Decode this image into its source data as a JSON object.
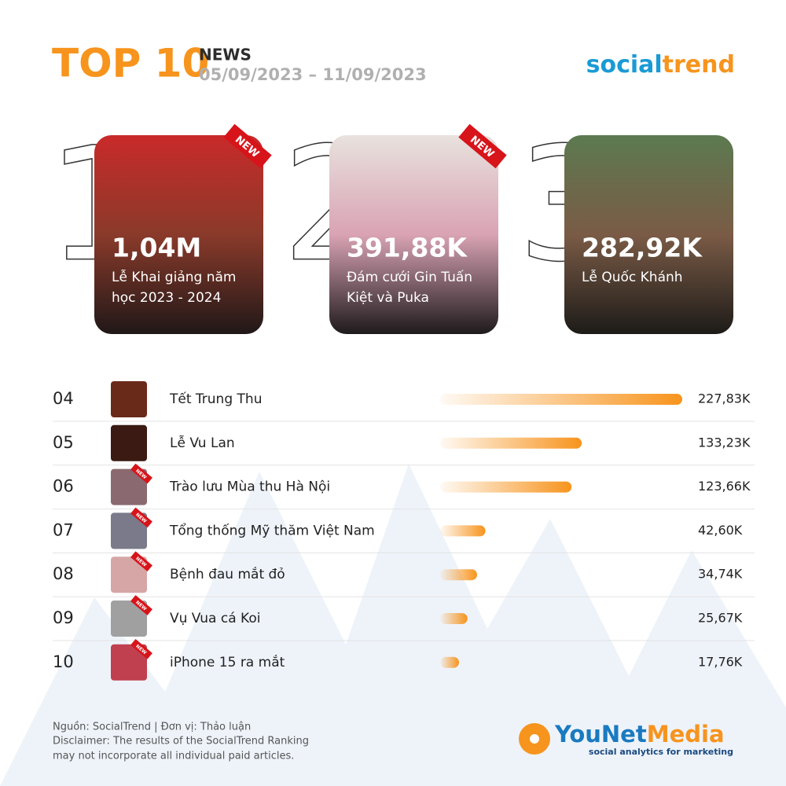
{
  "header": {
    "title": "TOP 10",
    "category": "NEWS",
    "dates": "05/09/2023 – 11/09/2023",
    "brand": {
      "a": "social",
      "b": "trend"
    }
  },
  "new_label": "NEW",
  "top3": [
    {
      "rank": "1",
      "value": 1040000,
      "value_label": "1,04M",
      "name_lines": [
        "Lễ Khai giảng năm",
        "học 2023 - 2024"
      ],
      "new": true
    },
    {
      "rank": "2",
      "value": 391880,
      "value_label": "391,88K",
      "name_lines": [
        "Đám cưới Gin Tuấn",
        "Kiệt và Puka"
      ],
      "new": true
    },
    {
      "rank": "3",
      "value": 282920,
      "value_label": "282,92K",
      "name_lines": [
        "Lễ Quốc Khánh"
      ],
      "new": false
    }
  ],
  "chart_data": {
    "type": "bar",
    "orientation": "horizontal",
    "ranks": [
      "04",
      "05",
      "06",
      "07",
      "08",
      "09",
      "10"
    ],
    "categories": [
      "Tết Trung Thu",
      "Lễ Vu Lan",
      "Trào lưu Mùa thu Hà Nội",
      "Tổng thống Mỹ thăm Việt Nam",
      "Bệnh đau mắt đỏ",
      "Vụ Vua cá Koi",
      "iPhone 15 ra mắt"
    ],
    "values": [
      227830,
      133230,
      123660,
      42600,
      34740,
      25670,
      17760
    ],
    "value_labels": [
      "227,83K",
      "133,23K",
      "123,66K",
      "42,60K",
      "34,74K",
      "25,67K",
      "17,76K"
    ],
    "new": [
      false,
      false,
      true,
      true,
      true,
      true,
      true
    ],
    "color": "#f7941d",
    "xlim": [
      0,
      227830
    ]
  },
  "footer": {
    "lines": [
      "Nguồn: SocialTrend |  Đơn vị: Thảo luận",
      "Disclaimer: The results of the SocialTrend Ranking",
      "may not incorporate all individual paid articles."
    ],
    "logo": {
      "a": "YouNet",
      "b": "Media"
    },
    "tagline": "social analytics for marketing"
  }
}
